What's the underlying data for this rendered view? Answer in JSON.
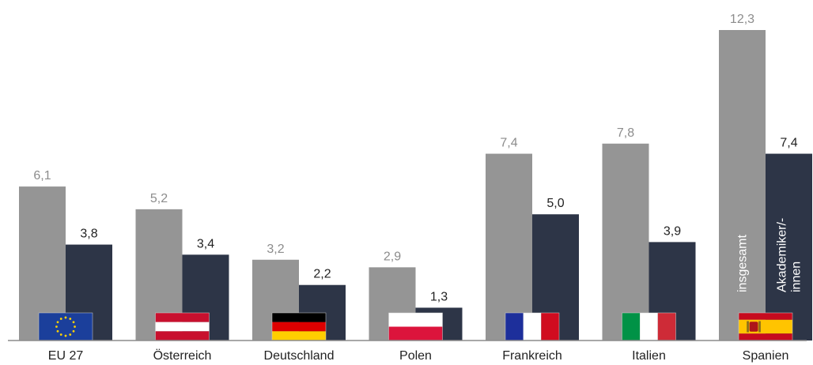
{
  "chart_data": {
    "type": "bar",
    "categories": [
      "EU 27",
      "Österreich",
      "Deutschland",
      "Polen",
      "Frankreich",
      "Italien",
      "Spanien"
    ],
    "series": [
      {
        "name": "insgesamt",
        "color": "#959595",
        "label_color": "#8c8c8c",
        "values": [
          6.1,
          5.2,
          3.2,
          2.9,
          7.4,
          7.8,
          12.3
        ],
        "labels": [
          "6,1",
          "5,2",
          "3,2",
          "2,9",
          "7,4",
          "7,8",
          "12,3"
        ]
      },
      {
        "name": "Akademiker/-innen",
        "name_lines": [
          "Akademiker/-",
          "innen"
        ],
        "color": "#2d3547",
        "label_color": "#222222",
        "values": [
          3.8,
          3.4,
          2.2,
          1.3,
          5.0,
          3.9,
          7.4
        ],
        "labels": [
          "3,8",
          "3,4",
          "2,2",
          "1,3",
          "5,0",
          "3,9",
          "7,4"
        ]
      }
    ],
    "ylim": [
      0,
      12.3
    ],
    "grid": false,
    "legend": "inside-bars",
    "flags": [
      "eu-flag",
      "austria-flag",
      "germany-flag",
      "poland-flag",
      "france-flag",
      "italy-flag",
      "spain-flag"
    ]
  }
}
